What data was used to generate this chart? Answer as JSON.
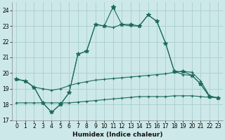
{
  "xlabel": "Humidex (Indice chaleur)",
  "bg_color": "#cde8e8",
  "grid_color": "#a8cece",
  "line_color": "#1a6b5a",
  "xlim": [
    -0.5,
    23.5
  ],
  "ylim": [
    17,
    24.5
  ],
  "yticks": [
    17,
    18,
    19,
    20,
    21,
    22,
    23,
    24
  ],
  "xticks": [
    0,
    1,
    2,
    3,
    4,
    5,
    6,
    7,
    8,
    9,
    10,
    11,
    12,
    13,
    14,
    15,
    16,
    17,
    18,
    19,
    20,
    21,
    22,
    23
  ],
  "lx": [
    0,
    1,
    2,
    3,
    4,
    5,
    6,
    7,
    8,
    9,
    10,
    11,
    12,
    13,
    14,
    15,
    16,
    17,
    18,
    19,
    20,
    21,
    22,
    23
  ],
  "ly_main": [
    19.6,
    19.5,
    19.1,
    18.1,
    17.5,
    18.0,
    18.75,
    21.2,
    21.4,
    23.1,
    23.0,
    24.2,
    23.1,
    23.1,
    23.0,
    23.7,
    23.3,
    21.9,
    20.1,
    20.1,
    19.85,
    19.3,
    18.5,
    18.4
  ],
  "ly_second": [
    19.6,
    19.5,
    19.1,
    18.1,
    17.5,
    18.0,
    18.75,
    21.2,
    21.4,
    23.1,
    23.0,
    22.9,
    23.1,
    23.0,
    23.0,
    23.7,
    23.3,
    21.9,
    20.1,
    19.9,
    19.85,
    19.3,
    18.5,
    18.4
  ],
  "ly_third": [
    19.6,
    19.5,
    19.1,
    19.0,
    18.9,
    19.0,
    19.2,
    19.35,
    19.45,
    19.55,
    19.6,
    19.65,
    19.7,
    19.75,
    19.8,
    19.85,
    19.9,
    19.95,
    20.05,
    20.1,
    20.05,
    19.5,
    18.55,
    18.4
  ],
  "ly_flat": [
    18.1,
    18.1,
    18.1,
    18.1,
    18.1,
    18.1,
    18.1,
    18.15,
    18.2,
    18.25,
    18.3,
    18.35,
    18.4,
    18.45,
    18.5,
    18.5,
    18.5,
    18.5,
    18.55,
    18.55,
    18.55,
    18.5,
    18.45,
    18.45
  ]
}
